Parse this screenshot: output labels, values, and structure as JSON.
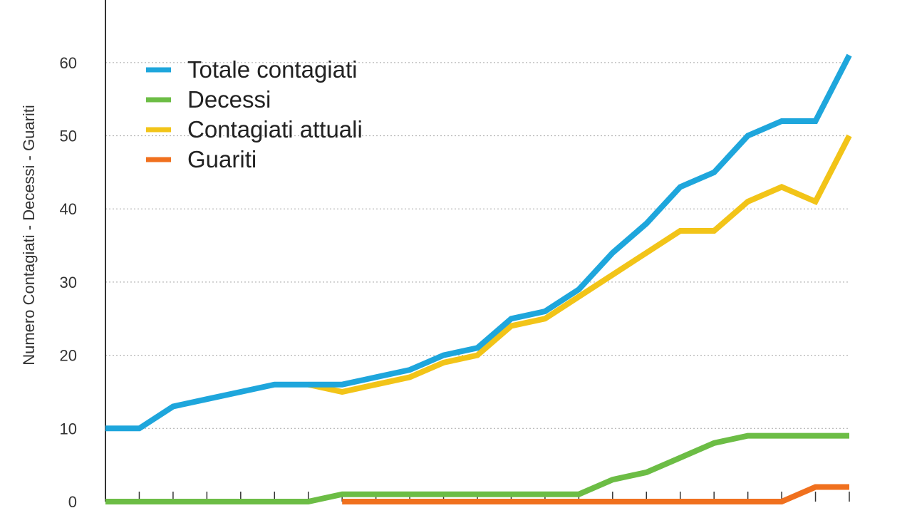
{
  "chart_data": {
    "type": "line",
    "ylabel": "Numero Contagiati - Decessi - Guariti",
    "ylim": [
      0,
      70
    ],
    "yticks": [
      0,
      10,
      20,
      30,
      40,
      50,
      60
    ],
    "grid": true,
    "legend_position": "top-left",
    "x": [
      1,
      2,
      3,
      4,
      5,
      6,
      7,
      8,
      9,
      10,
      11,
      12,
      13,
      14,
      15,
      16,
      17,
      18,
      19,
      20,
      21,
      22,
      23
    ],
    "series": [
      {
        "name": "Totale contagiati",
        "color": "#1ea6dc",
        "values": [
          10,
          10,
          13,
          14,
          15,
          16,
          16,
          16,
          17,
          18,
          20,
          21,
          25,
          26,
          29,
          34,
          38,
          43,
          45,
          50,
          52,
          52,
          61
        ]
      },
      {
        "name": "Decessi",
        "color": "#6cbd45",
        "values": [
          0,
          0,
          0,
          0,
          0,
          0,
          0,
          1,
          1,
          1,
          1,
          1,
          1,
          1,
          1,
          3,
          4,
          6,
          8,
          9,
          9,
          9,
          9
        ]
      },
      {
        "name": "Contagiati attuali",
        "color": "#f2c418",
        "values": [
          null,
          null,
          null,
          null,
          null,
          null,
          16,
          15,
          16,
          17,
          19,
          20,
          24,
          25,
          28,
          31,
          34,
          37,
          37,
          41,
          43,
          41,
          50
        ]
      },
      {
        "name": "Guariti",
        "color": "#f0701e",
        "values": [
          null,
          null,
          null,
          null,
          null,
          null,
          null,
          0,
          0,
          0,
          0,
          0,
          0,
          0,
          0,
          0,
          0,
          0,
          0,
          0,
          0,
          2,
          2
        ]
      }
    ]
  }
}
